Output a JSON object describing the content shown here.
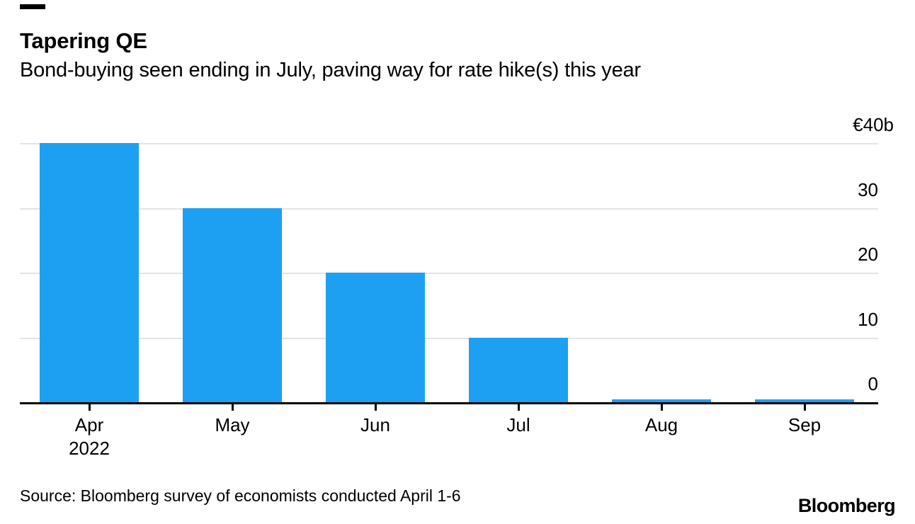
{
  "header": {
    "title": "Tapering QE",
    "subtitle": "Bond-buying seen ending in July, paving way for rate hike(s) this year"
  },
  "chart_data": {
    "type": "bar",
    "title": "Tapering QE",
    "subtitle": "Bond-buying seen ending in July, paving way for rate hike(s) this year",
    "categories": [
      "Apr 2022",
      "May",
      "Jun",
      "Jul",
      "Aug",
      "Sep"
    ],
    "category_display": [
      [
        "Apr",
        "2022"
      ],
      [
        "May"
      ],
      [
        "Jun"
      ],
      [
        "Jul"
      ],
      [
        "Aug"
      ],
      [
        "Sep"
      ]
    ],
    "values": [
      40,
      30,
      20,
      10,
      0,
      0
    ],
    "unit": "€ billions",
    "xlabel": "",
    "ylabel": "",
    "ylim": [
      0,
      40
    ],
    "yticks": {
      "values": [
        40,
        30,
        20,
        10,
        0
      ],
      "labels": [
        "€40b",
        "30",
        "20",
        "10",
        "0"
      ]
    },
    "grid": "horizontal gridlines on",
    "legend": "none",
    "colors": {
      "bar": "#1da0f2",
      "gridline": "#e4e4e4",
      "axis": "#000000",
      "text": "#000000"
    }
  },
  "footer": {
    "source": "Source: Bloomberg survey of economists conducted April 1-6",
    "logo": "Bloomberg"
  }
}
